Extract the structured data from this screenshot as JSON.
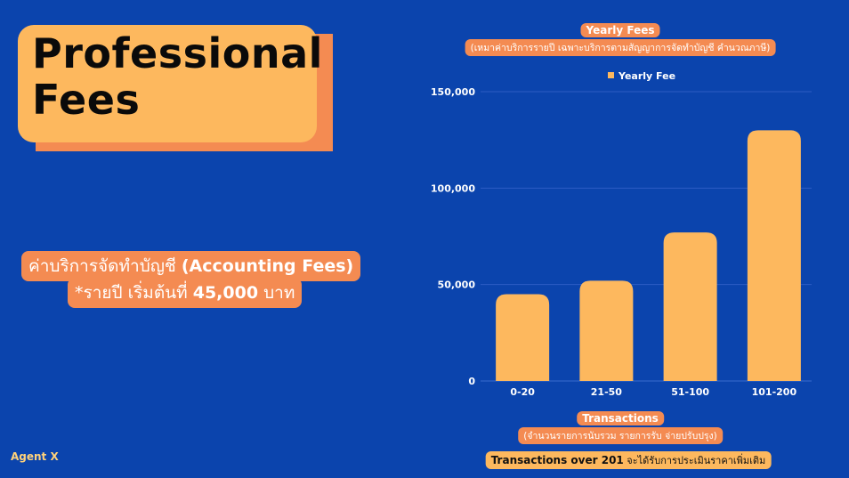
{
  "header": {
    "title_line1": "Professional",
    "title_line2": "Fees"
  },
  "fees": {
    "line1_thai": "ค่าบริการจัดทำบัญชี ",
    "line1_en": "(Accounting Fees)",
    "line2_prefix": "*รายปี เริ่มต้นที่ ",
    "line2_amount": "45,000",
    "line2_suffix": " บาท"
  },
  "brand": "Agent X",
  "note": {
    "bold": "Transactions over 201",
    "rest": " จะได้รับการประเมินราคาเพิ่มเติม"
  },
  "colors": {
    "background": "#0b44ad",
    "bar": "#fdb85e",
    "accent": "#f48b52"
  },
  "chart_data": {
    "type": "bar",
    "title": "Yearly Fees",
    "subtitle": "(เหมาค่าบริการรายปี เฉพาะบริการตามสัญญาการจัดทำบัญชี คำนวณภาษี)",
    "xlabel": "Transactions",
    "xlabel_sub": "(จำนวนรายการนับรวม รายการรับ จ่ายปรับปรุง)",
    "ylabel": "",
    "categories": [
      "0-20",
      "21-50",
      "51-100",
      "101-200"
    ],
    "series": [
      {
        "name": "Yearly Fee",
        "values": [
          45000,
          52000,
          77000,
          130000
        ]
      }
    ],
    "ylim": [
      0,
      150000
    ],
    "yticks": [
      0,
      50000,
      100000,
      150000
    ],
    "ytick_labels": [
      "0",
      "50,000",
      "100,000",
      "150,000"
    ],
    "grid": true,
    "legend": "top-center"
  }
}
